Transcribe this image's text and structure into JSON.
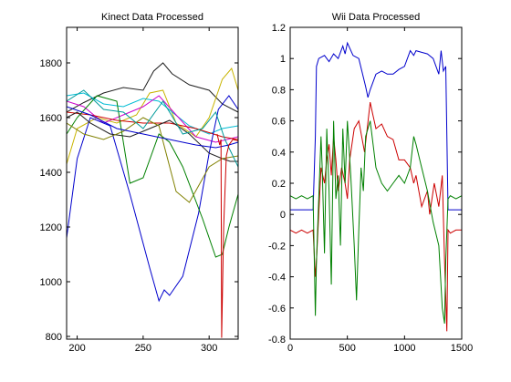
{
  "chart_data": [
    {
      "type": "line",
      "title": "Kinect Data Processed",
      "xlabel": "",
      "ylabel": "",
      "xlim": [
        192,
        322
      ],
      "ylim": [
        790,
        1930
      ],
      "xticks": [
        200,
        250,
        300
      ],
      "yticks": [
        800,
        1000,
        1200,
        1400,
        1600,
        1800
      ],
      "grid": false,
      "series": [
        {
          "color": "#1f1f1f",
          "x": [
            192,
            205,
            220,
            235,
            250,
            258,
            265,
            272,
            285,
            300,
            310,
            322
          ],
          "y": [
            1620,
            1655,
            1690,
            1710,
            1700,
            1770,
            1800,
            1760,
            1720,
            1700,
            1650,
            1620
          ]
        },
        {
          "color": "#c8b400",
          "x": [
            192,
            200,
            215,
            230,
            245,
            255,
            265,
            275,
            290,
            300,
            310,
            317,
            322
          ],
          "y": [
            1430,
            1560,
            1600,
            1580,
            1610,
            1690,
            1700,
            1580,
            1530,
            1600,
            1740,
            1780,
            1700
          ]
        },
        {
          "color": "#00bcd4",
          "x": [
            192,
            205,
            220,
            235,
            250,
            262,
            272,
            285,
            300,
            310,
            322
          ],
          "y": [
            1680,
            1690,
            1650,
            1640,
            1670,
            1660,
            1620,
            1570,
            1540,
            1560,
            1570
          ]
        },
        {
          "color": "#cc00cc",
          "x": [
            192,
            205,
            220,
            235,
            250,
            262,
            275,
            290,
            305,
            322
          ],
          "y": [
            1660,
            1640,
            1580,
            1610,
            1640,
            1680,
            1610,
            1530,
            1510,
            1530
          ]
        },
        {
          "color": "#cc0000",
          "x": [
            192,
            210,
            230,
            250,
            270,
            290,
            310,
            322
          ],
          "y": [
            1620,
            1610,
            1590,
            1580,
            1580,
            1560,
            1530,
            1520
          ]
        },
        {
          "color": "#0000cc",
          "x": [
            192,
            200,
            210,
            225,
            240,
            255,
            262,
            266,
            270,
            280,
            292,
            300,
            307,
            315,
            322
          ],
          "y": [
            1160,
            1450,
            1600,
            1570,
            1320,
            1050,
            930,
            970,
            950,
            1020,
            1250,
            1470,
            1630,
            1680,
            1630
          ]
        },
        {
          "color": "#008000",
          "x": [
            192,
            200,
            215,
            230,
            240,
            250,
            262,
            270,
            280,
            295,
            305,
            310,
            315,
            322
          ],
          "y": [
            1540,
            1600,
            1680,
            1660,
            1360,
            1380,
            1540,
            1510,
            1420,
            1230,
            1090,
            1100,
            1200,
            1320
          ]
        },
        {
          "color": "#1f1f1f",
          "x": [
            192,
            200,
            210,
            225,
            240,
            255,
            270,
            285,
            300,
            310,
            316,
            322
          ],
          "y": [
            1600,
            1620,
            1580,
            1540,
            1530,
            1560,
            1590,
            1540,
            1470,
            1450,
            1440,
            1440
          ]
        },
        {
          "color": "#808000",
          "x": [
            192,
            205,
            220,
            235,
            250,
            262,
            275,
            285,
            300,
            310,
            322
          ],
          "y": [
            1580,
            1540,
            1520,
            1550,
            1600,
            1570,
            1330,
            1290,
            1420,
            1450,
            1460
          ]
        },
        {
          "color": "#009a9a",
          "x": [
            192,
            205,
            220,
            235,
            250,
            265,
            280,
            295,
            305,
            312,
            322
          ],
          "y": [
            1660,
            1700,
            1630,
            1620,
            1560,
            1660,
            1540,
            1560,
            1620,
            1520,
            1420
          ]
        },
        {
          "color": "#0000cc",
          "x": [
            192,
            210,
            230,
            250,
            270,
            290,
            305,
            315,
            322
          ],
          "y": [
            1640,
            1610,
            1560,
            1540,
            1520,
            1500,
            1490,
            1500,
            1510
          ]
        },
        {
          "color": "#cc0000",
          "x": [
            306,
            308,
            309,
            309.5,
            311,
            313,
            315,
            318,
            322
          ],
          "y": [
            1540,
            1500,
            1520,
            795,
            1200,
            1460,
            1500,
            1520,
            1515
          ]
        }
      ]
    },
    {
      "type": "line",
      "title": "Wii Data Processed",
      "xlabel": "",
      "ylabel": "",
      "xlim": [
        0,
        1500
      ],
      "ylim": [
        -0.8,
        1.2
      ],
      "xticks": [
        0,
        500,
        1000,
        1500
      ],
      "yticks": [
        -0.8,
        -0.6,
        -0.4,
        -0.2,
        0,
        0.2,
        0.4,
        0.6,
        0.8,
        1,
        1.2
      ],
      "grid": false,
      "series": [
        {
          "color": "#0000cc",
          "x": [
            0,
            100,
            200,
            220,
            230,
            250,
            300,
            340,
            380,
            420,
            460,
            480,
            500,
            550,
            600,
            660,
            680,
            700,
            750,
            800,
            850,
            900,
            950,
            1000,
            1050,
            1080,
            1100,
            1150,
            1200,
            1250,
            1300,
            1320,
            1340,
            1360,
            1380,
            1500
          ],
          "y": [
            0.03,
            0.03,
            0.03,
            0.5,
            0.95,
            1.0,
            1.02,
            0.98,
            1.03,
            1.0,
            1.08,
            1.03,
            1.1,
            1.02,
            1.0,
            0.82,
            0.75,
            0.8,
            0.9,
            0.92,
            0.9,
            0.9,
            0.93,
            0.95,
            1.05,
            1.02,
            1.05,
            1.04,
            1.03,
            1.0,
            0.9,
            1.05,
            0.92,
            0.95,
            0.03,
            0.03
          ]
        },
        {
          "color": "#cc0000",
          "x": [
            0,
            50,
            100,
            150,
            200,
            220,
            230,
            250,
            270,
            300,
            320,
            340,
            360,
            380,
            400,
            420,
            450,
            480,
            500,
            520,
            560,
            600,
            650,
            700,
            720,
            750,
            800,
            850,
            900,
            950,
            1000,
            1050,
            1080,
            1100,
            1150,
            1200,
            1220,
            1260,
            1300,
            1330,
            1350,
            1370,
            1380,
            1400,
            1450,
            1500
          ],
          "y": [
            -0.1,
            -0.12,
            -0.1,
            -0.12,
            -0.1,
            -0.4,
            -0.3,
            0.0,
            0.3,
            0.2,
            0.35,
            0.45,
            0.25,
            0.5,
            0.35,
            0.15,
            0.3,
            0.2,
            0.1,
            0.35,
            0.55,
            0.6,
            0.4,
            0.72,
            0.65,
            0.55,
            0.58,
            0.5,
            0.48,
            0.35,
            0.35,
            0.3,
            0.2,
            0.25,
            0.05,
            0.15,
            0.0,
            0.2,
            0.05,
            0.25,
            -0.3,
            -0.75,
            -0.1,
            -0.12,
            -0.1,
            -0.1
          ]
        },
        {
          "color": "#008000",
          "x": [
            0,
            50,
            100,
            150,
            200,
            220,
            230,
            250,
            270,
            280,
            300,
            320,
            340,
            360,
            380,
            400,
            420,
            440,
            460,
            480,
            500,
            530,
            560,
            580,
            600,
            620,
            640,
            660,
            700,
            750,
            800,
            850,
            900,
            950,
            1000,
            1050,
            1080,
            1100,
            1150,
            1200,
            1250,
            1300,
            1330,
            1350,
            1360,
            1380,
            1400,
            1450,
            1500
          ],
          "y": [
            0.12,
            0.1,
            0.12,
            0.1,
            0.12,
            -0.65,
            -0.3,
            0.1,
            0.5,
            0.3,
            -0.25,
            0.55,
            0.15,
            -0.45,
            0.6,
            0.1,
            0.25,
            -0.2,
            0.55,
            0.2,
            0.6,
            0.25,
            -0.2,
            -0.55,
            -0.1,
            0.3,
            0.15,
            0.5,
            0.6,
            0.3,
            0.2,
            0.15,
            0.2,
            0.25,
            0.2,
            0.3,
            0.5,
            0.45,
            0.3,
            0.15,
            -0.05,
            -0.2,
            -0.6,
            -0.7,
            -0.3,
            0.1,
            0.12,
            0.1,
            0.12
          ]
        }
      ]
    }
  ]
}
